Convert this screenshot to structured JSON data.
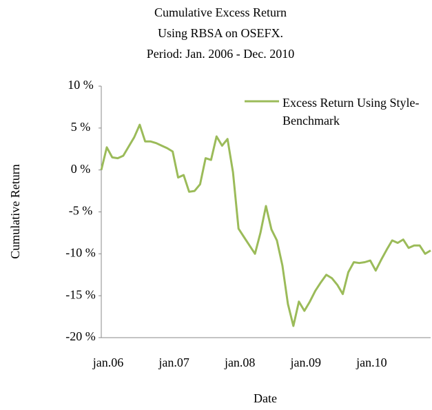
{
  "chart_data": {
    "type": "line",
    "title": [
      "Cumulative Excess Return",
      "Using RBSA on OSEFX.",
      "Period: Jan. 2006 - Dec. 2010"
    ],
    "x_label": "Date",
    "y_label": "Cumulative Return",
    "categories": [
      "jan.06",
      null,
      null,
      null,
      null,
      null,
      null,
      null,
      null,
      null,
      null,
      null,
      "jan.07",
      null,
      null,
      null,
      null,
      null,
      null,
      null,
      null,
      null,
      null,
      null,
      "jan.08",
      null,
      null,
      null,
      null,
      null,
      null,
      null,
      null,
      null,
      null,
      null,
      "jan.09",
      null,
      null,
      null,
      null,
      null,
      null,
      null,
      null,
      null,
      null,
      null,
      "jan.10",
      null,
      null,
      null,
      null,
      null,
      null,
      null,
      null,
      null,
      null,
      null,
      null
    ],
    "series": [
      {
        "name": "Excess Return Using Style-Benchmark",
        "color": "#9bbb59",
        "values": [
          0,
          2.7,
          1.5,
          1.4,
          1.7,
          2.8,
          3.9,
          5.4,
          3.4,
          3.4,
          3.2,
          2.9,
          2.6,
          2.2,
          -0.9,
          -0.6,
          -2.6,
          -2.5,
          -1.7,
          1.4,
          1.2,
          4.0,
          2.9,
          3.7,
          -0.3,
          -7.0,
          -8.0,
          -9.0,
          -10.0,
          -7.5,
          -4.3,
          -7.1,
          -8.4,
          -11.4,
          -16.0,
          -18.6,
          -15.7,
          -16.8,
          -15.7,
          -14.4,
          -13.4,
          -12.5,
          -12.9,
          -13.7,
          -14.8,
          -12.2,
          -11.0,
          -11.1,
          -11.0,
          -10.8,
          -12.0,
          -10.7,
          -9.5,
          -8.4,
          -8.7,
          -8.3,
          -9.3,
          -9.0,
          -9.0,
          -10.0,
          -9.6
        ]
      }
    ],
    "ylim": [
      -20,
      10
    ],
    "yticks": [
      {
        "value": -20,
        "label": "-20 %"
      },
      {
        "value": -15,
        "label": "-15 %"
      },
      {
        "value": -10,
        "label": "-10 %"
      },
      {
        "value": -5,
        "label": "-5 %"
      },
      {
        "value": 0,
        "label": "0 %"
      },
      {
        "value": 5,
        "label": "5 %"
      },
      {
        "value": 10,
        "label": "10 %"
      }
    ],
    "grid": false,
    "legend": "upper right"
  }
}
